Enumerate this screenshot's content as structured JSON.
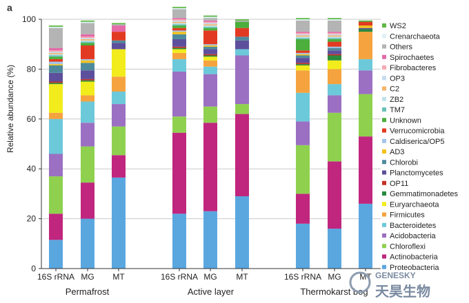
{
  "panel_label": "a",
  "chart_data": {
    "type": "bar",
    "stacked": true,
    "ylabel": "Relative abundance (%)",
    "ylim": [
      0,
      100
    ],
    "yticks": [
      0,
      20,
      40,
      60,
      80,
      100
    ],
    "grid": true,
    "legend_position": "right",
    "categories": [
      "16S rRNA",
      "MG",
      "MT",
      "16S rRNA",
      "MG",
      "MT",
      "16S rRNA",
      "MG",
      "MT"
    ],
    "groups": [
      {
        "label": "Permafrost",
        "members": [
          0,
          1,
          2
        ]
      },
      {
        "label": "Active layer",
        "members": [
          3,
          4,
          5
        ]
      },
      {
        "label": "Thermokarst bog",
        "members": [
          6,
          7,
          8
        ]
      }
    ],
    "series": [
      {
        "name": "Proteobacteria",
        "color": "#5aa7e0",
        "values": [
          11.5,
          20,
          36.5,
          22,
          23,
          29,
          18,
          16,
          26
        ]
      },
      {
        "name": "Actinobacteria",
        "color": "#c0267e",
        "values": [
          10.5,
          14.5,
          9,
          32.5,
          35.5,
          33,
          12,
          27,
          27
        ]
      },
      {
        "name": "Chloroflexi",
        "color": "#8fd14f",
        "values": [
          15,
          14.5,
          11.5,
          6.5,
          6.5,
          4,
          19.5,
          19.5,
          17
        ]
      },
      {
        "name": "Acidobacteria",
        "color": "#9b6fc2",
        "values": [
          9,
          9.5,
          9,
          18,
          13,
          19.5,
          9.5,
          7,
          9.5
        ]
      },
      {
        "name": "Bacteroidetes",
        "color": "#6cc9da",
        "values": [
          14,
          8.5,
          5,
          5,
          3,
          2.5,
          11.5,
          4.5,
          4.5
        ]
      },
      {
        "name": "Firmicutes",
        "color": "#f5a33f",
        "values": [
          2.5,
          2.5,
          6,
          2.5,
          2.5,
          0,
          9,
          6,
          11
        ]
      },
      {
        "name": "Euryarchaeota",
        "color": "#f2ec1c",
        "values": [
          11.5,
          5.5,
          11,
          1.5,
          1.5,
          0,
          2,
          3.5,
          0
        ]
      },
      {
        "name": "Gemmatimonadetes",
        "color": "#2a8a3e",
        "values": [
          0.5,
          0.5,
          0,
          0.5,
          0.5,
          0,
          0.5,
          2,
          1
        ]
      },
      {
        "name": "OP11",
        "color": "#c43024",
        "values": [
          0.5,
          0.5,
          0,
          0.5,
          0.5,
          0,
          0.5,
          0.5,
          0
        ]
      },
      {
        "name": "Planctomycetes",
        "color": "#5e4f9c",
        "values": [
          3.5,
          3.5,
          2.5,
          3,
          2,
          3.5,
          2,
          1.5,
          0.5
        ]
      },
      {
        "name": "Chlorobi",
        "color": "#4f8a9c",
        "values": [
          3,
          3,
          1,
          2,
          1,
          1.5,
          1,
          1,
          0
        ]
      },
      {
        "name": "AD3",
        "color": "#f2c21c",
        "values": [
          0.5,
          1,
          0,
          1,
          0.5,
          0,
          0.5,
          0,
          1
        ]
      },
      {
        "name": "Caldiserica/OP5",
        "color": "#a3c4e8",
        "values": [
          1,
          0.5,
          0,
          0.5,
          0.5,
          0,
          0.5,
          0.5,
          0
        ]
      },
      {
        "name": "Verrucomicrobia",
        "color": "#e23a22",
        "values": [
          1,
          5.5,
          3.5,
          1,
          5.5,
          3.5,
          1,
          2,
          1.5
        ]
      },
      {
        "name": "Unknown",
        "color": "#4cae3c",
        "values": [
          1,
          1,
          0,
          1,
          1,
          2.5,
          4.5,
          1,
          0.5
        ]
      },
      {
        "name": "TM7",
        "color": "#68c1b8",
        "values": [
          0.5,
          0.5,
          0,
          0.5,
          0.5,
          0,
          0.5,
          0.5,
          0
        ]
      },
      {
        "name": "ZB2",
        "color": "#bfe1ec",
        "values": [
          0.5,
          0.5,
          0,
          0.5,
          0.5,
          0,
          0.5,
          0.5,
          0
        ]
      },
      {
        "name": "C2",
        "color": "#f5b568",
        "values": [
          0.5,
          0.5,
          0,
          0.5,
          0.5,
          0,
          0.5,
          0.5,
          0
        ]
      },
      {
        "name": "OP3",
        "color": "#c5dcf0",
        "values": [
          0.5,
          0.5,
          0,
          0.5,
          0.5,
          0,
          0.5,
          0.5,
          0
        ]
      },
      {
        "name": "Fibrobacteres",
        "color": "#f6a9b3",
        "values": [
          0.5,
          0.5,
          0,
          0.5,
          0.5,
          0,
          0.5,
          0.5,
          0
        ]
      },
      {
        "name": "Spirochaetes",
        "color": "#e46aa8",
        "values": [
          1,
          1,
          2.5,
          0.5,
          0.5,
          0,
          0.5,
          0.5,
          0
        ]
      },
      {
        "name": "Others",
        "color": "#b4b4b4",
        "values": [
          8,
          4.5,
          0.5,
          3.5,
          1,
          0.5,
          4.5,
          4.5,
          0
        ]
      },
      {
        "name": "Crenarchaeota",
        "color": "#dff1f4",
        "values": [
          0.5,
          0.5,
          0,
          0.5,
          0.5,
          0,
          0.5,
          0.5,
          0
        ]
      },
      {
        "name": "WS2",
        "color": "#5fb846",
        "values": [
          0.5,
          0.5,
          0.5,
          0.5,
          0.5,
          0.5,
          0.5,
          0.5,
          0
        ]
      }
    ],
    "legend_order": [
      "WS2",
      "Crenarchaeota",
      "Others",
      "Spirochaetes",
      "Fibrobacteres",
      "OP3",
      "C2",
      "ZB2",
      "TM7",
      "Unknown",
      "Verrucomicrobia",
      "Caldiserica/OP5",
      "AD3",
      "Chlorobi",
      "Planctomycetes",
      "OP11",
      "Gemmatimonadetes",
      "Euryarchaeota",
      "Firmicutes",
      "Bacteroidetes",
      "Acidobacteria",
      "Chloroflexi",
      "Actinobacteria",
      "Proteobacteria"
    ]
  },
  "watermark": {
    "latin": "GENESKY",
    "cjk": "天昊生物",
    "color": "#7a8aa0"
  }
}
